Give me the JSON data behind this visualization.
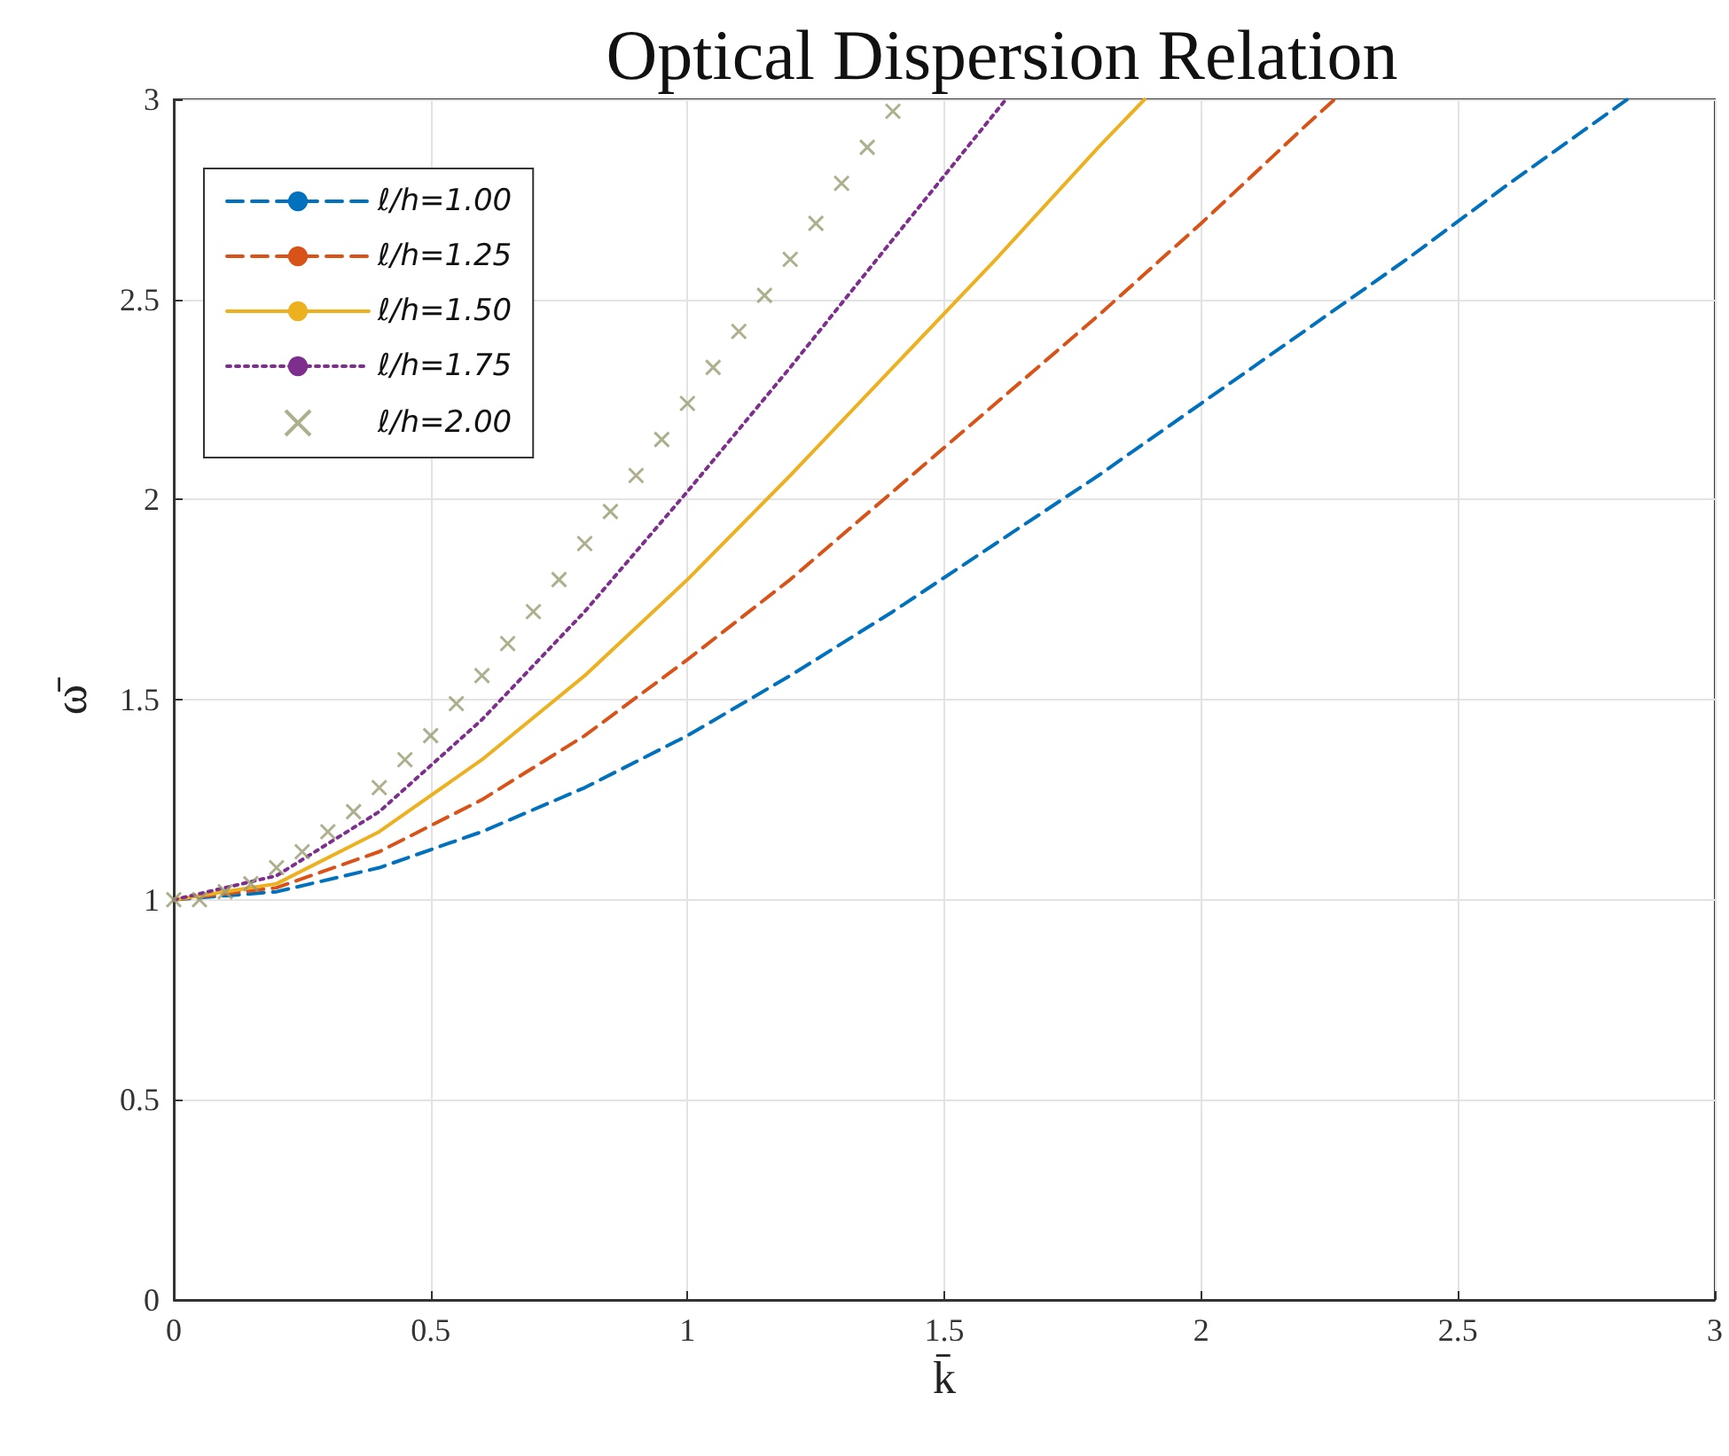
{
  "chart_data": {
    "type": "line",
    "title": "Optical Dispersion Relation",
    "xlabel": "k̄",
    "ylabel": "ω̄",
    "xlim": [
      0,
      3
    ],
    "ylim": [
      0,
      3
    ],
    "xticks": [
      0,
      0.5,
      1,
      1.5,
      2,
      2.5,
      3
    ],
    "yticks": [
      0,
      0.5,
      1,
      1.5,
      2,
      2.5,
      3
    ],
    "grid": true,
    "legend": "top left",
    "series": [
      {
        "name": "ℓ/h=1.00",
        "color": "#0072bd",
        "line_style": "dashed",
        "x": [
          0,
          0.2,
          0.4,
          0.6,
          0.8,
          1.0,
          1.2,
          1.4,
          1.6,
          1.8,
          2.0,
          2.2,
          2.4,
          2.6,
          2.83
        ],
        "values": [
          1,
          1.02,
          1.08,
          1.17,
          1.28,
          1.41,
          1.56,
          1.72,
          1.89,
          2.06,
          2.24,
          2.42,
          2.6,
          2.79,
          3.0
        ]
      },
      {
        "name": "ℓ/h=1.25",
        "color": "#d95319",
        "line_style": "dashed",
        "x": [
          0,
          0.2,
          0.4,
          0.6,
          0.8,
          1.0,
          1.2,
          1.4,
          1.6,
          1.8,
          2.0,
          2.2,
          2.26
        ],
        "values": [
          1,
          1.03,
          1.12,
          1.25,
          1.41,
          1.6,
          1.8,
          2.02,
          2.24,
          2.46,
          2.69,
          2.93,
          3.0
        ]
      },
      {
        "name": "ℓ/h=1.50",
        "color": "#edb120",
        "line_style": "solid",
        "x": [
          0,
          0.2,
          0.4,
          0.6,
          0.8,
          1.0,
          1.2,
          1.4,
          1.6,
          1.8,
          1.89
        ],
        "values": [
          1,
          1.04,
          1.17,
          1.35,
          1.56,
          1.8,
          2.06,
          2.33,
          2.6,
          2.88,
          3.0
        ]
      },
      {
        "name": "ℓ/h=1.75",
        "color": "#7e2f8e",
        "line_style": "dotted",
        "x": [
          0,
          0.2,
          0.4,
          0.6,
          0.8,
          1.0,
          1.2,
          1.4,
          1.62
        ],
        "values": [
          1,
          1.06,
          1.22,
          1.45,
          1.72,
          2.02,
          2.33,
          2.65,
          3.0
        ]
      },
      {
        "name": "ℓ/h=2.00",
        "color": "#9a9c70",
        "type": "scatter",
        "marker": "cross",
        "x": [
          0,
          0.05,
          0.1,
          0.15,
          0.2,
          0.25,
          0.3,
          0.35,
          0.4,
          0.45,
          0.5,
          0.55,
          0.6,
          0.65,
          0.7,
          0.75,
          0.8,
          0.85,
          0.9,
          0.95,
          1.0,
          1.05,
          1.1,
          1.15,
          1.2,
          1.25,
          1.3,
          1.35,
          1.4
        ],
        "values": [
          1,
          1.0,
          1.02,
          1.04,
          1.08,
          1.12,
          1.17,
          1.22,
          1.28,
          1.35,
          1.41,
          1.49,
          1.56,
          1.64,
          1.72,
          1.8,
          1.89,
          1.97,
          2.06,
          2.15,
          2.24,
          2.33,
          2.42,
          2.51,
          2.6,
          2.69,
          2.79,
          2.88,
          2.97
        ]
      }
    ]
  }
}
